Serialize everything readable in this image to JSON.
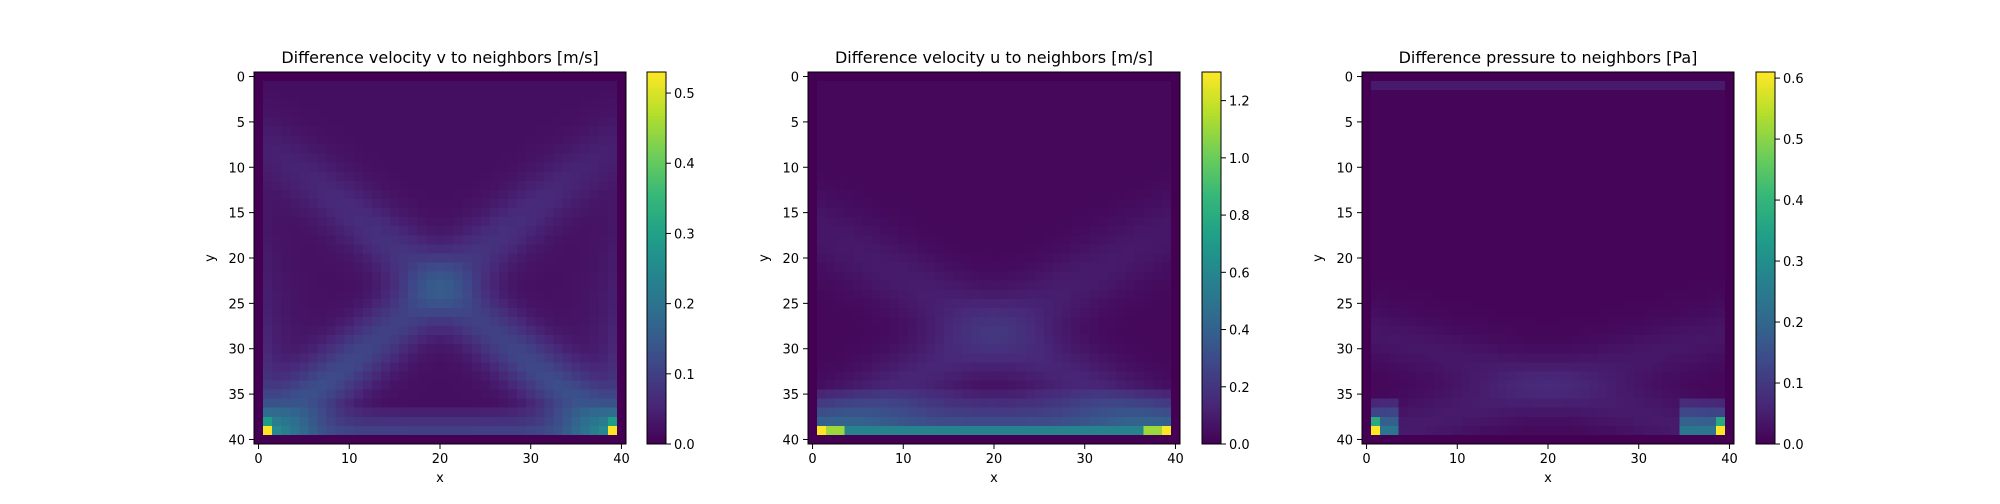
{
  "colormap": "viridis",
  "viridis_stops": [
    "#440154",
    "#482878",
    "#3e4989",
    "#31688e",
    "#26828e",
    "#1f9e89",
    "#35b779",
    "#6ece58",
    "#b5de2b",
    "#fde725"
  ],
  "chart_data": [
    {
      "type": "heatmap",
      "title": "Difference velocity v to neighbors [m/s]",
      "xlabel": "x",
      "ylabel": "y",
      "grid_size": 41,
      "xlim": [
        0,
        40
      ],
      "ylim": [
        40,
        0
      ],
      "x_ticks": [
        "0",
        "10",
        "20",
        "30",
        "40"
      ],
      "y_ticks": [
        "0",
        "5",
        "10",
        "15",
        "20",
        "25",
        "30",
        "35",
        "40"
      ],
      "colorbar": {
        "min": 0.0,
        "max": 0.53,
        "ticks": [
          "0.0",
          "0.1",
          "0.2",
          "0.3",
          "0.4",
          "0.5"
        ]
      },
      "pattern": "v_diff",
      "features": [
        {
          "description": "bright spots at bottom corners",
          "x": [
            1,
            39
          ],
          "y": 39,
          "value": 0.53
        },
        {
          "description": "diagonal bands from corners toward center",
          "peak_value": 0.2
        }
      ]
    },
    {
      "type": "heatmap",
      "title": "Difference velocity u to neighbors [m/s]",
      "xlabel": "x",
      "ylabel": "y",
      "grid_size": 41,
      "xlim": [
        0,
        40
      ],
      "ylim": [
        40,
        0
      ],
      "x_ticks": [
        "0",
        "10",
        "20",
        "30",
        "40"
      ],
      "y_ticks": [
        "0",
        "5",
        "10",
        "15",
        "20",
        "25",
        "30",
        "35",
        "40"
      ],
      "colorbar": {
        "min": 0.0,
        "max": 1.3,
        "ticks": [
          "0.0",
          "0.2",
          "0.4",
          "0.6",
          "0.8",
          "1.0",
          "1.2"
        ]
      },
      "pattern": "u_diff",
      "features": [
        {
          "description": "bright row along the bottom edge",
          "y": 39,
          "value": 1.3
        }
      ]
    },
    {
      "type": "heatmap",
      "title": "Difference pressure to neighbors [Pa]",
      "xlabel": "x",
      "ylabel": "y",
      "grid_size": 41,
      "xlim": [
        0,
        40
      ],
      "ylim": [
        40,
        0
      ],
      "x_ticks": [
        "0",
        "10",
        "20",
        "30",
        "40"
      ],
      "y_ticks": [
        "0",
        "5",
        "10",
        "15",
        "20",
        "25",
        "30",
        "35",
        "40"
      ],
      "colorbar": {
        "min": 0.0,
        "max": 0.61,
        "ticks": [
          "0.0",
          "0.1",
          "0.2",
          "0.3",
          "0.4",
          "0.5",
          "0.6"
        ]
      },
      "pattern": "p_diff",
      "features": [
        {
          "description": "bright spots at bottom corners",
          "x": [
            1,
            39
          ],
          "y": 39,
          "value": 0.6
        },
        {
          "description": "faint band along top edge",
          "y": 1,
          "value": 0.05
        }
      ]
    }
  ]
}
